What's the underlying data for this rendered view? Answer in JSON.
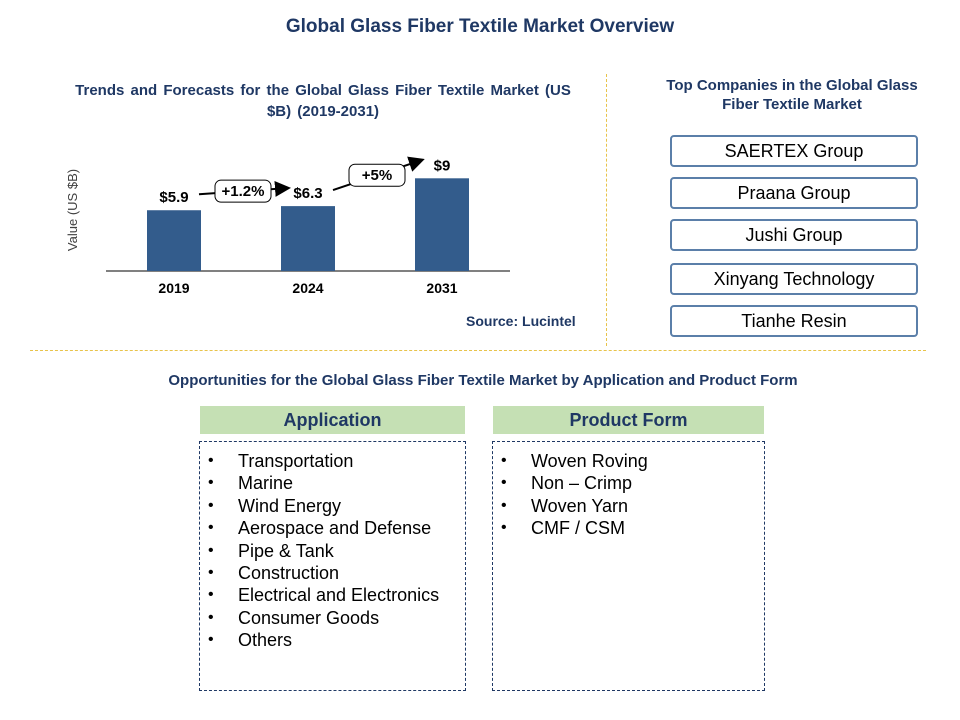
{
  "page": {
    "title": "Global Glass Fiber Textile Market Overview",
    "source": "Source: Lucintel"
  },
  "chart_data": {
    "type": "bar",
    "title": "Trends and Forecasts for the Global Glass Fiber Textile Market (US $B) (2019-2031)",
    "ylabel": "Value (US $B)",
    "xlabel": "",
    "categories": [
      "2019",
      "2024",
      "2031"
    ],
    "values": [
      5.9,
      6.3,
      9
    ],
    "value_labels": [
      "$5.9",
      "$6.3",
      "$9"
    ],
    "ylim": [
      0,
      10
    ],
    "bar_color": "#335c8c",
    "grid": false,
    "growth_annotations": [
      {
        "from": "2019",
        "to": "2024",
        "label": "+1.2%"
      },
      {
        "from": "2024",
        "to": "2031",
        "label": "+5%"
      }
    ]
  },
  "companies": {
    "title": "Top Companies in the Global Glass Fiber Textile Market",
    "items": [
      "SAERTEX Group",
      "Praana Group",
      "Jushi Group",
      "Xinyang Technology",
      "Tianhe Resin"
    ]
  },
  "opportunities": {
    "title": "Opportunities for the Global Glass Fiber Textile Market by Application and Product Form",
    "application": {
      "header": "Application",
      "items": [
        "Transportation",
        "Marine",
        "Wind Energy",
        "Aerospace and Defense",
        "Pipe & Tank",
        "Construction",
        "Electrical and Electronics",
        "Consumer Goods",
        "Others"
      ]
    },
    "product_form": {
      "header": "Product Form",
      "items": [
        "Woven Roving",
        "Non – Crimp",
        "Woven Yarn",
        "CMF / CSM"
      ]
    }
  },
  "colors": {
    "title_text": "#1f3864",
    "header_fill": "#c5e0b4",
    "company_border": "#5b7fa9",
    "divider": "#e8c34a"
  }
}
